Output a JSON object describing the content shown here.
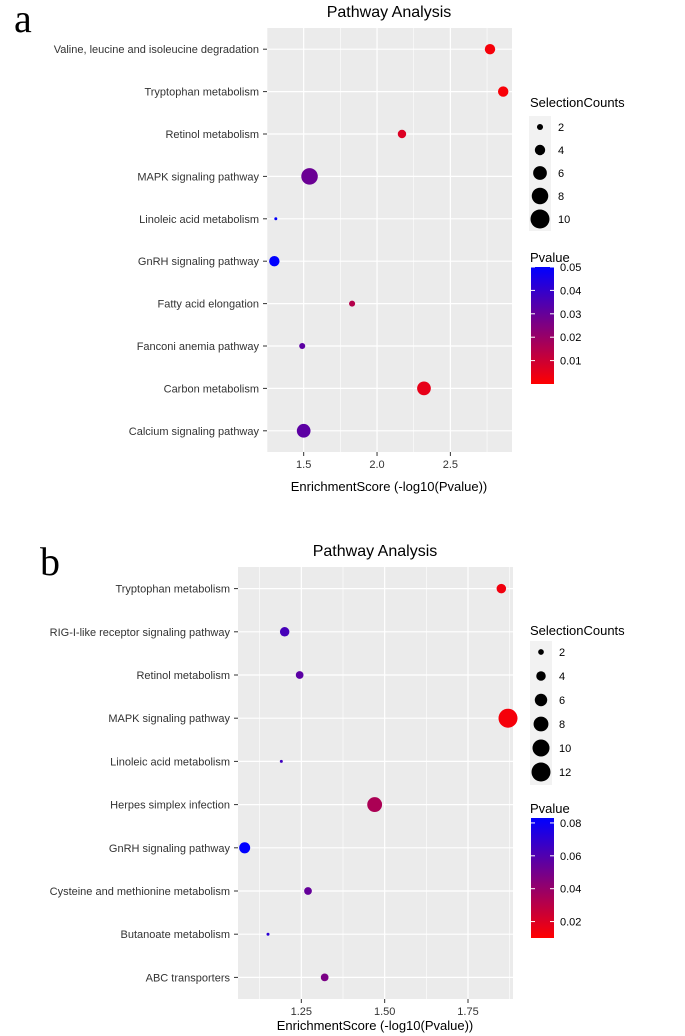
{
  "chart_data": [
    {
      "panel": "a",
      "type": "scatter",
      "title": "Pathway Analysis",
      "xlabel": "EnrichmentScore (-log10(Pvalue))",
      "xlim": [
        1.25,
        2.92
      ],
      "xticks": [
        1.5,
        2.0,
        2.5
      ],
      "xtick_labels": [
        "1.5",
        "2.0",
        "2.5"
      ],
      "categories": [
        "Valine, leucine and isoleucine degradation",
        "Tryptophan metabolism",
        "Retinol metabolism",
        "MAPK signaling pathway",
        "Linoleic acid metabolism",
        "GnRH signaling pathway",
        "Fatty acid elongation",
        "Fanconi anemia pathway",
        "Carbon metabolism",
        "Calcium signaling pathway"
      ],
      "x": [
        2.77,
        2.86,
        2.17,
        1.54,
        1.31,
        1.3,
        1.83,
        1.49,
        2.32,
        1.5
      ],
      "pvalue": [
        0.0017,
        0.0014,
        0.0068,
        0.029,
        0.049,
        0.05,
        0.0148,
        0.032,
        0.0048,
        0.032
      ],
      "selection_counts": [
        4,
        4,
        3,
        8,
        1,
        4,
        2,
        2,
        6,
        6
      ],
      "size_legend": {
        "title": "SelectionCounts",
        "values": [
          2,
          4,
          6,
          8,
          10
        ]
      },
      "color_legend": {
        "title": "Pvalue",
        "ticks": [
          0.01,
          0.02,
          0.03,
          0.04,
          0.05
        ],
        "tick_labels": [
          "0.01",
          "0.02",
          "0.03",
          "0.04",
          "0.05"
        ],
        "range": [
          0.0,
          0.05
        ],
        "low_color": "#ff0000",
        "high_color": "#0000ff"
      },
      "grid": true,
      "legend_position": "right"
    },
    {
      "panel": "b",
      "type": "scatter",
      "title": "Pathway Analysis",
      "xlabel": "EnrichmentScore (-log10(Pvalue))",
      "xlim": [
        1.06,
        1.885
      ],
      "xticks": [
        1.25,
        1.5,
        1.75
      ],
      "xtick_labels": [
        "1.25",
        "1.50",
        "1.75"
      ],
      "categories": [
        "Tryptophan metabolism",
        "RIG-I-like receptor signaling pathway",
        "Retinol metabolism",
        "MAPK signaling pathway",
        "Linoleic acid metabolism",
        "Herpes simplex infection",
        "GnRH signaling pathway",
        "Cysteine and methionine metabolism",
        "Butanoate metabolism",
        "ABC transporters"
      ],
      "x": [
        1.85,
        1.2,
        1.245,
        1.87,
        1.19,
        1.47,
        1.08,
        1.27,
        1.15,
        1.32
      ],
      "pvalue": [
        0.014,
        0.063,
        0.057,
        0.013,
        0.065,
        0.034,
        0.083,
        0.054,
        0.071,
        0.048
      ],
      "selection_counts": [
        4,
        4,
        3,
        12,
        1,
        8,
        5,
        3,
        1,
        3
      ],
      "size_legend": {
        "title": "SelectionCounts",
        "values": [
          2,
          4,
          6,
          8,
          10,
          12
        ]
      },
      "color_legend": {
        "title": "Pvalue",
        "ticks": [
          0.02,
          0.04,
          0.06,
          0.08
        ],
        "tick_labels": [
          "0.02",
          "0.04",
          "0.06",
          "0.08"
        ],
        "range": [
          0.01,
          0.083
        ],
        "low_color": "#ff0000",
        "high_color": "#0000ff"
      },
      "grid": true,
      "legend_position": "right"
    }
  ],
  "colors": {
    "panel_background": "#ebebeb",
    "gridline": "#ffffff"
  }
}
